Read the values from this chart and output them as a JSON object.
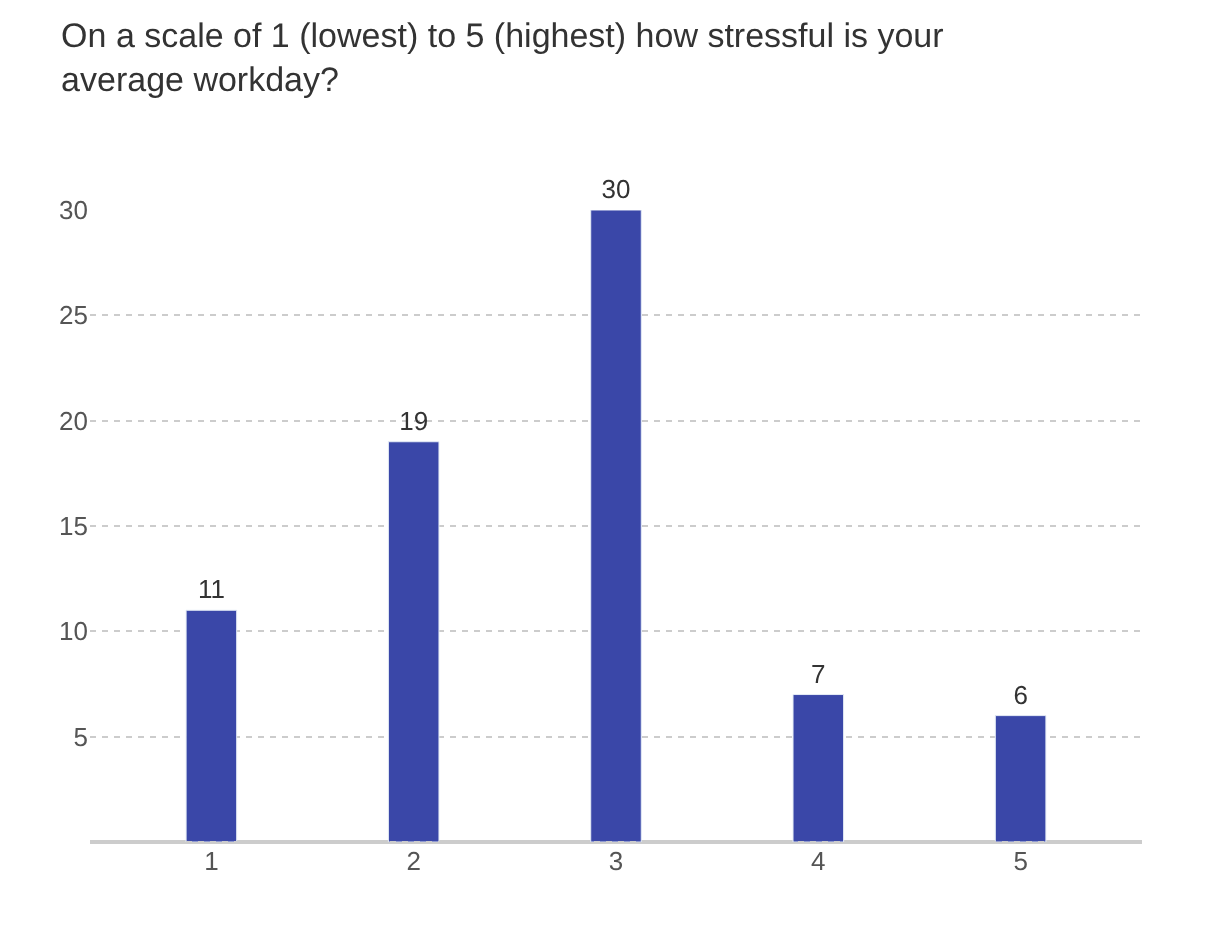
{
  "chart_data": {
    "type": "bar",
    "title": "On a scale of 1 (lowest) to 5 (highest) how stressful is your average workday?",
    "categories": [
      "1",
      "2",
      "3",
      "4",
      "5"
    ],
    "values": [
      11,
      19,
      30,
      7,
      6
    ],
    "color": "#3a47a8",
    "ylim": [
      0,
      30
    ],
    "yticks": [
      5,
      10,
      15,
      20,
      25,
      30
    ],
    "grid": "y",
    "data_labels": true,
    "legend": false
  }
}
